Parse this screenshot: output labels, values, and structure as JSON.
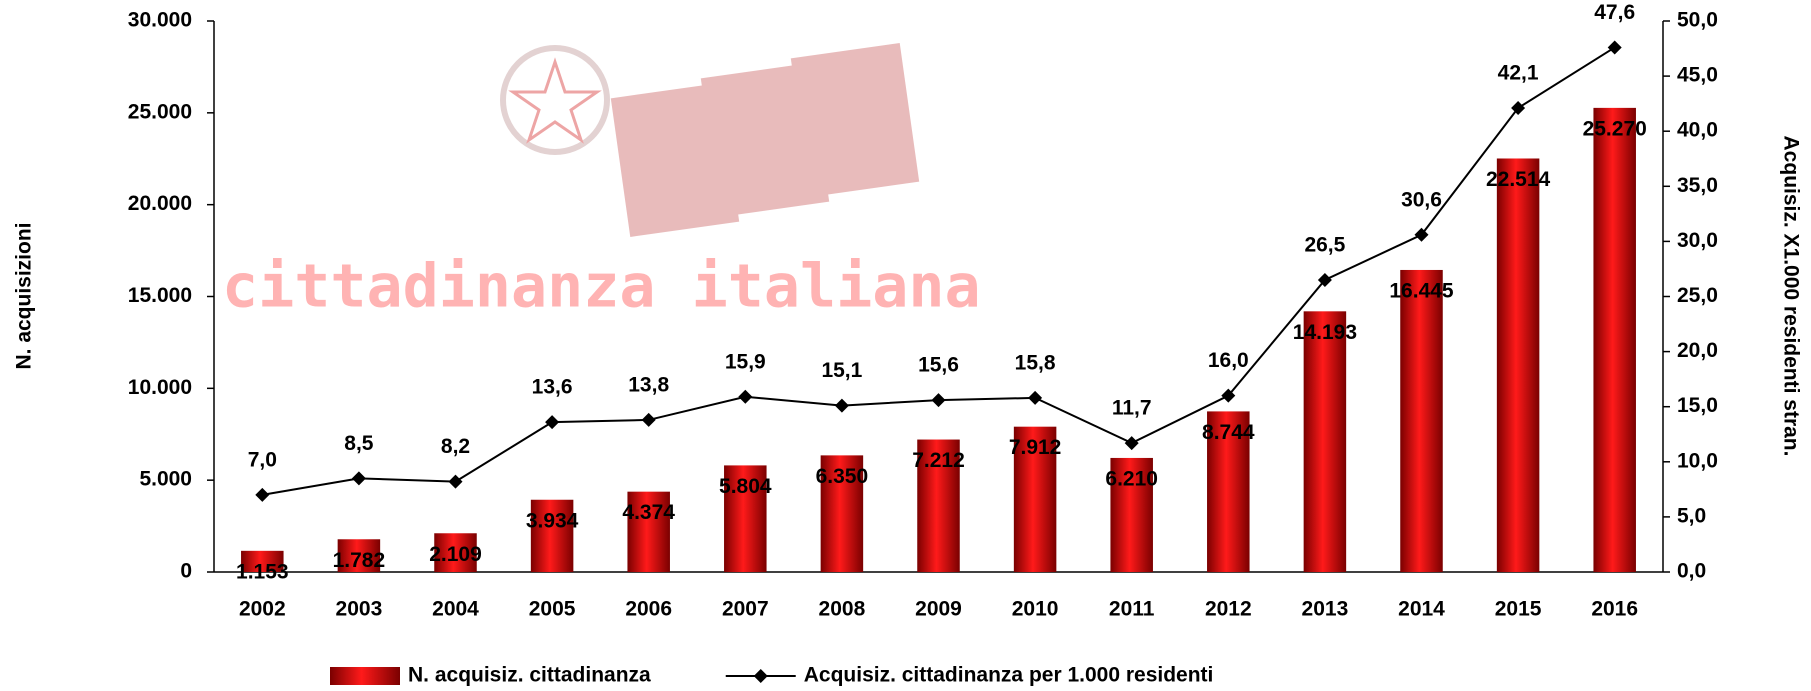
{
  "chart_data": {
    "type": "bar_line",
    "watermark": "cittadinanza italiana",
    "y_label": "N. acquisizioni",
    "y2_label": "Acquisiz. X1.000 residenti stran.",
    "categories": [
      "2002",
      "2003",
      "2004",
      "2005",
      "2006",
      "2007",
      "2008",
      "2009",
      "2010",
      "2011",
      "2012",
      "2013",
      "2014",
      "2015",
      "2016"
    ],
    "series": [
      {
        "name": "N. acquisiz. cittadinanza",
        "type": "bar",
        "color": "#cc0000",
        "values": [
          1153,
          1782,
          2109,
          3934,
          4374,
          5804,
          6350,
          7212,
          7912,
          6210,
          8744,
          14193,
          16445,
          22514,
          25270
        ],
        "value_labels": [
          "1.153",
          "1.782",
          "2.109",
          "3.934",
          "4.374",
          "5.804",
          "6.350",
          "7.212",
          "7.912",
          "6.210",
          "8.744",
          "14.193",
          "16.445",
          "22.514",
          "25.270"
        ]
      },
      {
        "name": "Acquisiz. cittadinanza per 1.000 residenti",
        "type": "line",
        "axis": "y2",
        "color": "#000000",
        "values": [
          7.0,
          8.5,
          8.2,
          13.6,
          13.8,
          15.9,
          15.1,
          15.6,
          15.8,
          11.7,
          16.0,
          26.5,
          30.6,
          42.1,
          47.6
        ],
        "value_labels": [
          "7,0",
          "8,5",
          "8,2",
          "13,6",
          "13,8",
          "15,9",
          "15,1",
          "15,6",
          "15,8",
          "11,7",
          "16,0",
          "26,5",
          "30,6",
          "42,1",
          "47,6"
        ]
      }
    ],
    "ylim": [
      0,
      30000
    ],
    "yticks": [
      0,
      {
        "value": 5000,
        "label": "5.000"
      },
      {
        "value": 10000,
        "label": "10.000"
      },
      {
        "value": 15000,
        "label": "15.000"
      },
      {
        "value": 20000,
        "label": "20.000"
      },
      {
        "value": 25000,
        "label": "25.000"
      },
      {
        "value": 30000,
        "label": "30.000"
      }
    ],
    "y2lim": [
      0,
      50
    ],
    "y2ticks": [
      {
        "value": 0,
        "label": "0,0"
      },
      {
        "value": 5,
        "label": "5,0"
      },
      {
        "value": 10,
        "label": "10,0"
      },
      {
        "value": 15,
        "label": "15,0"
      },
      {
        "value": 20,
        "label": "20,0"
      },
      {
        "value": 25,
        "label": "25,0"
      },
      {
        "value": 30,
        "label": "30,0"
      },
      {
        "value": 35,
        "label": "35,0"
      },
      {
        "value": 40,
        "label": "40,0"
      },
      {
        "value": 45,
        "label": "45,0"
      },
      {
        "value": 50,
        "label": "50,0"
      }
    ],
    "grid": false,
    "legend": "bottom"
  }
}
